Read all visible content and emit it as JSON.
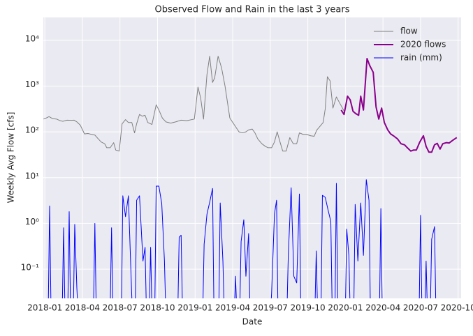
{
  "chart_data": {
    "type": "line",
    "title": "Observed Flow and Rain in the last 3 years",
    "x_label": "Date",
    "y_label": "Weekly Avg Flow [cfs]",
    "log_y": true,
    "grid": true,
    "legend": "upper right",
    "xlim": [
      2017.99,
      2020.77
    ],
    "ylim": [
      0.023,
      31600
    ],
    "xticks": [
      {
        "value": 2018.0,
        "label": "2018-01"
      },
      {
        "value": 2018.25,
        "label": "2018-04"
      },
      {
        "value": 2018.5,
        "label": "2018-07"
      },
      {
        "value": 2018.75,
        "label": "2018-10"
      },
      {
        "value": 2019.0,
        "label": "2019-01"
      },
      {
        "value": 2019.25,
        "label": "2019-04"
      },
      {
        "value": 2019.5,
        "label": "2019-07"
      },
      {
        "value": 2019.75,
        "label": "2019-10"
      },
      {
        "value": 2020.0,
        "label": "2020-01"
      },
      {
        "value": 2020.25,
        "label": "2020-04"
      },
      {
        "value": 2020.5,
        "label": "2020-07"
      },
      {
        "value": 2020.75,
        "label": "2020-10"
      }
    ],
    "yticks": [
      {
        "value": 0.1,
        "label": "10⁻¹"
      },
      {
        "value": 1,
        "label": "10⁰"
      },
      {
        "value": 10,
        "label": "10¹"
      },
      {
        "value": 100,
        "label": "10²"
      },
      {
        "value": 1000,
        "label": "10³"
      },
      {
        "value": 10000,
        "label": "10⁴"
      }
    ],
    "series": [
      {
        "name": "flow",
        "color": "#808080",
        "linewidth": 1,
        "x": [
          2017.991,
          2018.009,
          2018.028,
          2018.051,
          2018.079,
          2018.102,
          2018.12,
          2018.148,
          2018.176,
          2018.194,
          2018.213,
          2018.236,
          2018.264,
          2018.287,
          2018.31,
          2018.333,
          2018.356,
          2018.375,
          2018.398,
          2018.412,
          2018.435,
          2018.458,
          2018.472,
          2018.495,
          2018.514,
          2018.537,
          2018.556,
          2018.579,
          2018.597,
          2018.611,
          2018.63,
          2018.648,
          2018.667,
          2018.685,
          2018.713,
          2018.741,
          2018.759,
          2018.782,
          2018.806,
          2018.838,
          2018.87,
          2018.907,
          2018.944,
          2018.995,
          2019.019,
          2019.037,
          2019.056,
          2019.079,
          2019.097,
          2019.116,
          2019.13,
          2019.153,
          2019.176,
          2019.199,
          2019.231,
          2019.269,
          2019.292,
          2019.315,
          2019.338,
          2019.356,
          2019.38,
          2019.398,
          2019.417,
          2019.444,
          2019.468,
          2019.486,
          2019.509,
          2019.528,
          2019.546,
          2019.565,
          2019.583,
          2019.606,
          2019.63,
          2019.653,
          2019.676,
          2019.694,
          2019.718,
          2019.741,
          2019.769,
          2019.792,
          2019.81,
          2019.829,
          2019.852,
          2019.866,
          2019.88,
          2019.898,
          2019.917,
          2019.94,
          2019.963,
          2019.995
        ],
        "values": [
          190,
          200,
          215,
          195,
          190,
          175,
          170,
          180,
          178,
          180,
          165,
          140,
          90,
          92,
          88,
          85,
          70,
          60,
          55,
          45,
          45,
          58,
          40,
          38,
          150,
          185,
          160,
          160,
          95,
          150,
          240,
          220,
          230,
          160,
          145,
          390,
          300,
          200,
          165,
          155,
          165,
          180,
          175,
          190,
          950,
          550,
          190,
          1800,
          4500,
          1200,
          1500,
          4500,
          2500,
          1000,
          200,
          130,
          100,
          95,
          100,
          110,
          115,
          95,
          70,
          55,
          48,
          45,
          45,
          60,
          100,
          60,
          38,
          38,
          75,
          55,
          55,
          95,
          88,
          88,
          82,
          80,
          110,
          130,
          160,
          320,
          1600,
          1300,
          330,
          580,
          420,
          270
        ]
      },
      {
        "name": "2020 flows",
        "color": "#8b008b",
        "linewidth": 2,
        "x": [
          2019.972,
          2019.991,
          2020.014,
          2020.032,
          2020.051,
          2020.069,
          2020.088,
          2020.102,
          2020.12,
          2020.144,
          2020.162,
          2020.185,
          2020.204,
          2020.222,
          2020.241,
          2020.259,
          2020.282,
          2020.301,
          2020.324,
          2020.347,
          2020.37,
          2020.394,
          2020.412,
          2020.435,
          2020.454,
          2020.472,
          2020.495,
          2020.519,
          2020.537,
          2020.556,
          2020.574,
          2020.593,
          2020.611,
          2020.63,
          2020.648,
          2020.671,
          2020.69,
          2020.713,
          2020.741
        ],
        "values": [
          300,
          240,
          600,
          500,
          280,
          250,
          230,
          600,
          300,
          4000,
          2800,
          2000,
          350,
          190,
          330,
          160,
          110,
          90,
          80,
          70,
          55,
          52,
          45,
          38,
          40,
          40,
          60,
          82,
          48,
          36,
          36,
          52,
          56,
          42,
          55,
          58,
          57,
          65,
          75
        ]
      },
      {
        "name": "rain (mm)",
        "color": "#0000ff",
        "linewidth": 1,
        "x": [
          2018.022,
          2018.032,
          2018.042,
          2018.115,
          2018.125,
          2018.135,
          2018.152,
          2018.162,
          2018.172,
          2018.189,
          2018.199,
          2018.213,
          2018.223,
          2018.323,
          2018.333,
          2018.343,
          2018.434,
          2018.444,
          2018.454,
          2018.509,
          2018.519,
          2018.537,
          2018.556,
          2018.574,
          2018.584,
          2018.601,
          2018.611,
          2018.63,
          2018.653,
          2018.667,
          2018.677,
          2018.694,
          2018.704,
          2018.714,
          2018.731,
          2018.741,
          2018.759,
          2018.778,
          2018.796,
          2018.806,
          2018.884,
          2018.894,
          2018.907,
          2018.917,
          2019.05,
          2019.06,
          2019.079,
          2019.098,
          2019.116,
          2019.126,
          2019.157,
          2019.167,
          2019.185,
          2019.195,
          2019.259,
          2019.269,
          2019.279,
          2019.296,
          2019.306,
          2019.324,
          2019.338,
          2019.356,
          2019.366,
          2019.499,
          2019.509,
          2019.528,
          2019.542,
          2019.552,
          2019.61,
          2019.62,
          2019.639,
          2019.657,
          2019.676,
          2019.694,
          2019.704,
          2019.796,
          2019.806,
          2019.816,
          2019.837,
          2019.847,
          2019.866,
          2019.884,
          2019.903,
          2019.913,
          2019.93,
          2019.94,
          2019.95,
          2019.999,
          2020.009,
          2020.023,
          2020.033,
          2020.055,
          2020.065,
          2020.083,
          2020.102,
          2020.12,
          2020.139,
          2020.157,
          2020.167,
          2020.226,
          2020.236,
          2020.246,
          2020.49,
          2020.5,
          2020.51,
          2020.527,
          2020.537,
          2020.547,
          2020.564,
          2020.574,
          2020.593,
          2020.603
        ],
        "values": [
          0,
          2.4,
          0,
          0,
          0.8,
          0,
          0,
          1.8,
          0,
          0,
          0.95,
          0.04,
          0,
          0,
          1.0,
          0,
          0,
          0.8,
          0,
          0,
          4.0,
          1.4,
          4.0,
          0.07,
          0,
          0,
          3.2,
          4.0,
          0.15,
          0.3,
          0,
          0,
          0.3,
          0,
          0,
          6.5,
          6.5,
          2.7,
          0.15,
          0,
          0,
          0.5,
          0.55,
          0,
          0,
          0.35,
          1.6,
          3.0,
          5.8,
          0,
          0,
          2.8,
          0.15,
          0,
          0,
          0.07,
          0,
          0,
          0.4,
          1.2,
          0.07,
          0.6,
          0,
          0,
          0.03,
          1.6,
          3.2,
          0,
          0,
          0.2,
          6.0,
          0.07,
          0.05,
          4.4,
          0,
          0,
          0.25,
          0,
          0,
          4.1,
          3.7,
          2.0,
          1.1,
          0,
          0,
          7.5,
          0,
          0,
          0.75,
          0.2,
          0,
          0,
          2.6,
          0.15,
          2.8,
          0.2,
          9.0,
          3.2,
          0,
          0,
          2.1,
          0,
          0,
          1.5,
          0,
          0,
          0.15,
          0,
          0,
          0.45,
          0.85,
          0
        ]
      }
    ]
  }
}
